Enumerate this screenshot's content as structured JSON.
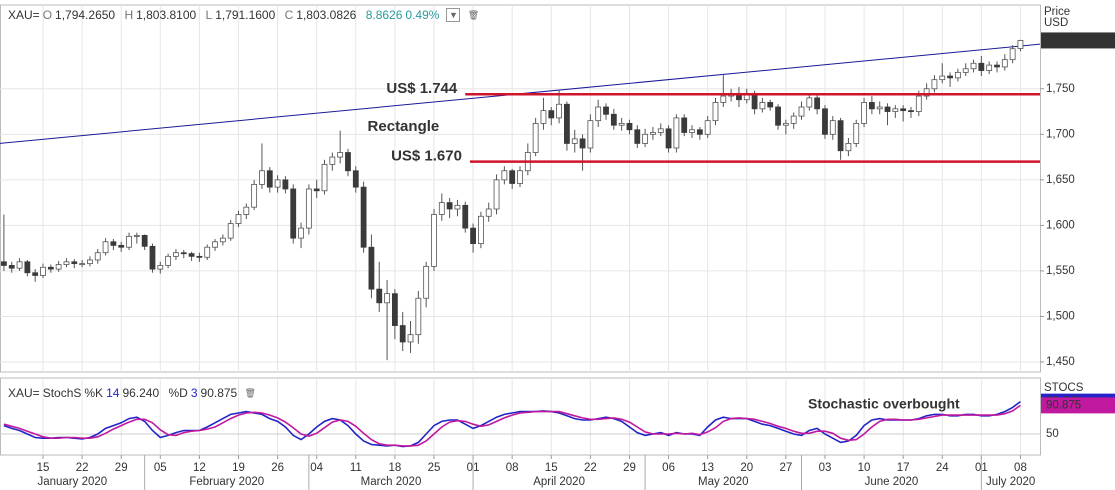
{
  "chart_data": [
    {
      "type": "candlestick",
      "header": {
        "symbol": "XAU=",
        "o_label": "O",
        "open": "1,794.2650",
        "h_label": "H",
        "high": "1,803.8100",
        "l_label": "L",
        "low": "1,791.1600",
        "c_label": "C",
        "close": "1,803.0826",
        "change": "8.8626",
        "change_pct": "0.49%"
      },
      "axis_title": [
        "Price",
        "USD"
      ],
      "color_up": "#ffffff",
      "color_down": "#3a3a3a",
      "outline": "#555555",
      "xlim": [
        -0.5,
        132.5
      ],
      "xticks": [
        {
          "value": 5,
          "label": "15"
        },
        {
          "value": 10,
          "label": "22"
        },
        {
          "value": 15,
          "label": "29"
        },
        {
          "value": 20,
          "label": "05"
        },
        {
          "value": 25,
          "label": "12"
        },
        {
          "value": 30,
          "label": "19"
        },
        {
          "value": 35,
          "label": "26"
        },
        {
          "value": 40,
          "label": "04"
        },
        {
          "value": 45,
          "label": "11"
        },
        {
          "value": 50,
          "label": "18"
        },
        {
          "value": 55,
          "label": "25"
        },
        {
          "value": 60,
          "label": "01"
        },
        {
          "value": 65,
          "label": "08"
        },
        {
          "value": 70,
          "label": "15"
        },
        {
          "value": 75,
          "label": "22"
        },
        {
          "value": 80,
          "label": "29"
        },
        {
          "value": 85,
          "label": "06"
        },
        {
          "value": 90,
          "label": "13"
        },
        {
          "value": 95,
          "label": "20"
        },
        {
          "value": 100,
          "label": "27"
        },
        {
          "value": 105,
          "label": "03"
        },
        {
          "value": 110,
          "label": "10"
        },
        {
          "value": 115,
          "label": "17"
        },
        {
          "value": 120,
          "label": "24"
        },
        {
          "value": 125,
          "label": "01"
        },
        {
          "value": 130,
          "label": "08"
        }
      ],
      "months": [
        {
          "value": -5,
          "label": "January 2020"
        },
        {
          "value": 18,
          "label": "February 2020"
        },
        {
          "value": 39,
          "label": "March 2020"
        },
        {
          "value": 60,
          "label": "April 2020"
        },
        {
          "value": 82,
          "label": "May 2020"
        },
        {
          "value": 102,
          "label": "June 2020"
        },
        {
          "value": 125,
          "label": "July 2020"
        }
      ],
      "ylim": [
        1439,
        1842
      ],
      "yticks": [
        {
          "value": 1450,
          "label": "1,450"
        },
        {
          "value": 1500,
          "label": "1,500"
        },
        {
          "value": 1550,
          "label": "1,550"
        },
        {
          "value": 1600,
          "label": "1,600"
        },
        {
          "value": 1650,
          "label": "1,650"
        },
        {
          "value": 1700,
          "label": "1,700"
        },
        {
          "value": 1750,
          "label": "1,750"
        }
      ],
      "grid": true,
      "last_price": 1803.0826,
      "trendline": {
        "color": "#1a1a9a",
        "x": [
          -0.5,
          132.5
        ],
        "values": [
          1690,
          1799
        ]
      },
      "levels": [
        {
          "label": "US$ 1.744",
          "value": 1744,
          "from": 59
        },
        {
          "label": "US$ 1.670",
          "value": 1670,
          "from": 59.6
        }
      ],
      "level_color": "#d0142c",
      "pattern_label": "Rectangle",
      "candles": [
        [
          1560,
          1612,
          1550,
          1556
        ],
        [
          1556,
          1560,
          1548,
          1553
        ],
        [
          1553,
          1564,
          1550,
          1560
        ],
        [
          1560,
          1562,
          1544,
          1548
        ],
        [
          1548,
          1552,
          1538,
          1545
        ],
        [
          1545,
          1558,
          1542,
          1554
        ],
        [
          1554,
          1557,
          1548,
          1552
        ],
        [
          1552,
          1561,
          1549,
          1557
        ],
        [
          1557,
          1564,
          1554,
          1560
        ],
        [
          1560,
          1563,
          1553,
          1558
        ],
        [
          1558,
          1562,
          1554,
          1558
        ],
        [
          1558,
          1566,
          1555,
          1562
        ],
        [
          1562,
          1574,
          1558,
          1570
        ],
        [
          1570,
          1586,
          1567,
          1582
        ],
        [
          1582,
          1585,
          1573,
          1578
        ],
        [
          1578,
          1582,
          1571,
          1576
        ],
        [
          1576,
          1592,
          1573,
          1588
        ],
        [
          1588,
          1592,
          1580,
          1589
        ],
        [
          1589,
          1590,
          1573,
          1577
        ],
        [
          1577,
          1580,
          1548,
          1552
        ],
        [
          1552,
          1560,
          1547,
          1556
        ],
        [
          1556,
          1569,
          1553,
          1566
        ],
        [
          1566,
          1574,
          1562,
          1570
        ],
        [
          1570,
          1573,
          1564,
          1569
        ],
        [
          1569,
          1571,
          1561,
          1566
        ],
        [
          1566,
          1570,
          1560,
          1565
        ],
        [
          1565,
          1579,
          1562,
          1576
        ],
        [
          1576,
          1585,
          1572,
          1582
        ],
        [
          1582,
          1590,
          1578,
          1586
        ],
        [
          1586,
          1606,
          1583,
          1602
        ],
        [
          1602,
          1616,
          1598,
          1612
        ],
        [
          1612,
          1624,
          1607,
          1620
        ],
        [
          1620,
          1650,
          1617,
          1645
        ],
        [
          1645,
          1690,
          1640,
          1660
        ],
        [
          1660,
          1664,
          1636,
          1642
        ],
        [
          1642,
          1655,
          1636,
          1650
        ],
        [
          1650,
          1654,
          1635,
          1640
        ],
        [
          1640,
          1645,
          1580,
          1586
        ],
        [
          1586,
          1603,
          1575,
          1597
        ],
        [
          1597,
          1645,
          1590,
          1640
        ],
        [
          1640,
          1650,
          1630,
          1638
        ],
        [
          1638,
          1672,
          1634,
          1667
        ],
        [
          1667,
          1680,
          1660,
          1675
        ],
        [
          1675,
          1704,
          1668,
          1680
        ],
        [
          1680,
          1684,
          1654,
          1660
        ],
        [
          1660,
          1665,
          1636,
          1642
        ],
        [
          1642,
          1648,
          1570,
          1576
        ],
        [
          1576,
          1590,
          1520,
          1530
        ],
        [
          1530,
          1560,
          1505,
          1515
        ],
        [
          1515,
          1540,
          1452,
          1525
        ],
        [
          1525,
          1530,
          1475,
          1490
        ],
        [
          1490,
          1505,
          1462,
          1472
        ],
        [
          1472,
          1495,
          1460,
          1480
        ],
        [
          1480,
          1528,
          1470,
          1520
        ],
        [
          1520,
          1560,
          1510,
          1555
        ],
        [
          1555,
          1618,
          1550,
          1612
        ],
        [
          1612,
          1635,
          1605,
          1625
        ],
        [
          1625,
          1630,
          1608,
          1618
        ],
        [
          1618,
          1628,
          1610,
          1622
        ],
        [
          1622,
          1626,
          1592,
          1597
        ],
        [
          1597,
          1602,
          1570,
          1580
        ],
        [
          1580,
          1615,
          1575,
          1610
        ],
        [
          1610,
          1625,
          1604,
          1618
        ],
        [
          1618,
          1656,
          1612,
          1650
        ],
        [
          1650,
          1665,
          1645,
          1660
        ],
        [
          1660,
          1662,
          1640,
          1646
        ],
        [
          1646,
          1665,
          1642,
          1660
        ],
        [
          1660,
          1690,
          1655,
          1680
        ],
        [
          1680,
          1718,
          1676,
          1712
        ],
        [
          1712,
          1740,
          1705,
          1726
        ],
        [
          1726,
          1730,
          1710,
          1718
        ],
        [
          1718,
          1748,
          1712,
          1733
        ],
        [
          1733,
          1736,
          1682,
          1690
        ],
        [
          1690,
          1705,
          1680,
          1695
        ],
        [
          1695,
          1700,
          1660,
          1685
        ],
        [
          1685,
          1722,
          1680,
          1715
        ],
        [
          1715,
          1738,
          1708,
          1730
        ],
        [
          1730,
          1734,
          1716,
          1722
        ],
        [
          1722,
          1728,
          1705,
          1710
        ],
        [
          1710,
          1718,
          1704,
          1712
        ],
        [
          1712,
          1716,
          1700,
          1705
        ],
        [
          1705,
          1710,
          1685,
          1690
        ],
        [
          1690,
          1706,
          1686,
          1700
        ],
        [
          1700,
          1708,
          1694,
          1702
        ],
        [
          1702,
          1712,
          1698,
          1706
        ],
        [
          1706,
          1710,
          1680,
          1685
        ],
        [
          1685,
          1722,
          1680,
          1718
        ],
        [
          1718,
          1722,
          1698,
          1702
        ],
        [
          1702,
          1710,
          1696,
          1705
        ],
        [
          1705,
          1708,
          1694,
          1700
        ],
        [
          1700,
          1720,
          1696,
          1715
        ],
        [
          1715,
          1740,
          1710,
          1735
        ],
        [
          1735,
          1765,
          1730,
          1742
        ],
        [
          1742,
          1750,
          1736,
          1745
        ],
        [
          1745,
          1752,
          1730,
          1738
        ],
        [
          1738,
          1750,
          1734,
          1745
        ],
        [
          1745,
          1748,
          1722,
          1728
        ],
        [
          1728,
          1740,
          1724,
          1735
        ],
        [
          1735,
          1738,
          1726,
          1730
        ],
        [
          1730,
          1733,
          1705,
          1710
        ],
        [
          1710,
          1716,
          1700,
          1712
        ],
        [
          1712,
          1724,
          1706,
          1720
        ],
        [
          1720,
          1736,
          1716,
          1730
        ],
        [
          1730,
          1745,
          1726,
          1740
        ],
        [
          1740,
          1744,
          1722,
          1728
        ],
        [
          1728,
          1732,
          1695,
          1700
        ],
        [
          1700,
          1720,
          1694,
          1715
        ],
        [
          1715,
          1718,
          1672,
          1682
        ],
        [
          1682,
          1696,
          1676,
          1690
        ],
        [
          1690,
          1716,
          1686,
          1712
        ],
        [
          1712,
          1740,
          1708,
          1735
        ],
        [
          1735,
          1742,
          1722,
          1728
        ],
        [
          1728,
          1736,
          1722,
          1730
        ],
        [
          1730,
          1734,
          1710,
          1725
        ],
        [
          1725,
          1732,
          1718,
          1728
        ],
        [
          1728,
          1732,
          1714,
          1726
        ],
        [
          1726,
          1730,
          1718,
          1725
        ],
        [
          1725,
          1748,
          1720,
          1742
        ],
        [
          1742,
          1756,
          1738,
          1750
        ],
        [
          1750,
          1765,
          1746,
          1760
        ],
        [
          1760,
          1778,
          1756,
          1764
        ],
        [
          1764,
          1768,
          1752,
          1762
        ],
        [
          1762,
          1772,
          1758,
          1768
        ],
        [
          1768,
          1778,
          1764,
          1772
        ],
        [
          1772,
          1782,
          1768,
          1778
        ],
        [
          1778,
          1786,
          1764,
          1770
        ],
        [
          1770,
          1780,
          1766,
          1776
        ],
        [
          1776,
          1780,
          1768,
          1774
        ],
        [
          1774,
          1788,
          1770,
          1782
        ],
        [
          1782,
          1798,
          1778,
          1794
        ],
        [
          1794.265,
          1803.81,
          1791.16,
          1803.0826
        ]
      ]
    },
    {
      "type": "line",
      "header": {
        "symbol": "XAU=",
        "name": "StochS",
        "k_label": "%K",
        "k_period": "14",
        "k_value": "96.240",
        "d_label": "%D",
        "d_period": "3",
        "d_value": "90.875"
      },
      "axis_title": "STOCS",
      "annotation": "Stochastic overbought",
      "ylim": [
        20,
        130
      ],
      "yticks": [
        50
      ],
      "series": [
        {
          "name": "%K",
          "color": "#2323c8",
          "values": [
            62,
            58,
            55,
            50,
            45,
            44,
            44,
            45,
            45,
            44,
            43,
            45,
            50,
            58,
            62,
            66,
            72,
            74,
            68,
            55,
            45,
            48,
            52,
            55,
            55,
            55,
            60,
            66,
            72,
            78,
            80,
            82,
            80,
            78,
            72,
            68,
            60,
            48,
            42,
            50,
            60,
            68,
            72,
            70,
            62,
            50,
            40,
            35,
            34,
            33,
            34,
            32,
            33,
            38,
            50,
            62,
            68,
            70,
            70,
            64,
            58,
            62,
            68,
            74,
            78,
            80,
            82,
            82,
            82,
            83,
            82,
            80,
            76,
            72,
            70,
            70,
            72,
            74,
            72,
            68,
            60,
            52,
            48,
            50,
            52,
            48,
            52,
            50,
            50,
            48,
            60,
            70,
            74,
            72,
            72,
            72,
            68,
            64,
            62,
            58,
            54,
            50,
            48,
            55,
            58,
            50,
            44,
            38,
            40,
            48,
            62,
            70,
            72,
            70,
            70,
            70,
            70,
            72,
            76,
            78,
            78,
            76,
            76,
            78,
            78,
            76,
            76,
            78,
            82,
            88,
            96.24
          ]
        },
        {
          "name": "%D",
          "color": "#c0189e",
          "values": [
            64,
            61,
            58,
            54,
            50,
            46,
            44,
            44,
            45,
            45,
            44,
            44,
            46,
            51,
            57,
            62,
            67,
            71,
            71,
            66,
            56,
            49,
            48,
            52,
            54,
            55,
            57,
            60,
            66,
            72,
            77,
            80,
            81,
            80,
            77,
            73,
            67,
            59,
            50,
            47,
            51,
            59,
            67,
            70,
            68,
            61,
            51,
            42,
            36,
            34,
            34,
            33,
            33,
            34,
            40,
            50,
            60,
            67,
            69,
            68,
            64,
            61,
            63,
            68,
            73,
            77,
            80,
            81,
            82,
            82,
            82,
            82,
            79,
            76,
            73,
            71,
            71,
            72,
            73,
            71,
            67,
            60,
            53,
            50,
            50,
            50,
            51,
            50,
            51,
            49,
            53,
            59,
            68,
            72,
            73,
            72,
            71,
            68,
            65,
            61,
            58,
            54,
            51,
            51,
            54,
            54,
            51,
            44,
            41,
            42,
            50,
            60,
            68,
            71,
            71,
            70,
            70,
            71,
            73,
            75,
            77,
            77,
            77,
            77,
            77,
            77,
            77,
            77,
            79,
            83,
            90.875
          ]
        }
      ]
    }
  ]
}
